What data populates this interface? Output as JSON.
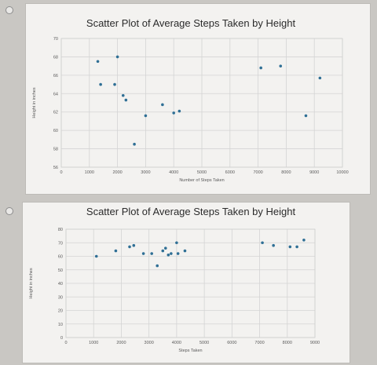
{
  "chart_data": [
    {
      "type": "scatter",
      "title": "Scatter Plot of Average Steps Taken by Height",
      "xlabel": "Number of Steps Taken",
      "ylabel": "Height in inches",
      "xlim": [
        0,
        10000
      ],
      "ylim": [
        56,
        70
      ],
      "xticks": [
        "0",
        "1000",
        "2000",
        "3000",
        "4000",
        "5000",
        "6000",
        "7000",
        "8000",
        "9000",
        "10000"
      ],
      "yticks": [
        "56",
        "58",
        "60",
        "62",
        "64",
        "66",
        "68",
        "70"
      ],
      "grid": true,
      "points": [
        {
          "x": 1300,
          "y": 67.5
        },
        {
          "x": 2000,
          "y": 68
        },
        {
          "x": 1400,
          "y": 65
        },
        {
          "x": 1900,
          "y": 65
        },
        {
          "x": 2200,
          "y": 63.8
        },
        {
          "x": 2300,
          "y": 63.3
        },
        {
          "x": 2600,
          "y": 58.5
        },
        {
          "x": 3000,
          "y": 61.6
        },
        {
          "x": 3600,
          "y": 62.8
        },
        {
          "x": 4000,
          "y": 61.9
        },
        {
          "x": 4200,
          "y": 62.1
        },
        {
          "x": 7100,
          "y": 66.8
        },
        {
          "x": 7800,
          "y": 67
        },
        {
          "x": 8700,
          "y": 61.6
        },
        {
          "x": 9200,
          "y": 65.7
        }
      ]
    },
    {
      "type": "scatter",
      "title": "Scatter Plot of Average Steps Taken by Height",
      "xlabel": "Steps Taken",
      "ylabel": "Height in inches",
      "xlim": [
        0,
        9000
      ],
      "ylim": [
        0,
        80
      ],
      "xticks": [
        "0",
        "1000",
        "2000",
        "3000",
        "4000",
        "5000",
        "6000",
        "7000",
        "8000",
        "9000"
      ],
      "yticks": [
        "0",
        "10",
        "20",
        "30",
        "40",
        "50",
        "60",
        "70",
        "80"
      ],
      "grid": true,
      "points": [
        {
          "x": 1100,
          "y": 60
        },
        {
          "x": 1800,
          "y": 64
        },
        {
          "x": 2300,
          "y": 67
        },
        {
          "x": 2450,
          "y": 68
        },
        {
          "x": 2800,
          "y": 62
        },
        {
          "x": 3100,
          "y": 62
        },
        {
          "x": 3300,
          "y": 53
        },
        {
          "x": 3500,
          "y": 64
        },
        {
          "x": 3600,
          "y": 66
        },
        {
          "x": 3700,
          "y": 61
        },
        {
          "x": 3800,
          "y": 62
        },
        {
          "x": 4000,
          "y": 70
        },
        {
          "x": 4050,
          "y": 62
        },
        {
          "x": 4300,
          "y": 64
        },
        {
          "x": 7100,
          "y": 70
        },
        {
          "x": 7500,
          "y": 68
        },
        {
          "x": 8100,
          "y": 67
        },
        {
          "x": 8350,
          "y": 67
        },
        {
          "x": 8600,
          "y": 72
        }
      ]
    }
  ]
}
